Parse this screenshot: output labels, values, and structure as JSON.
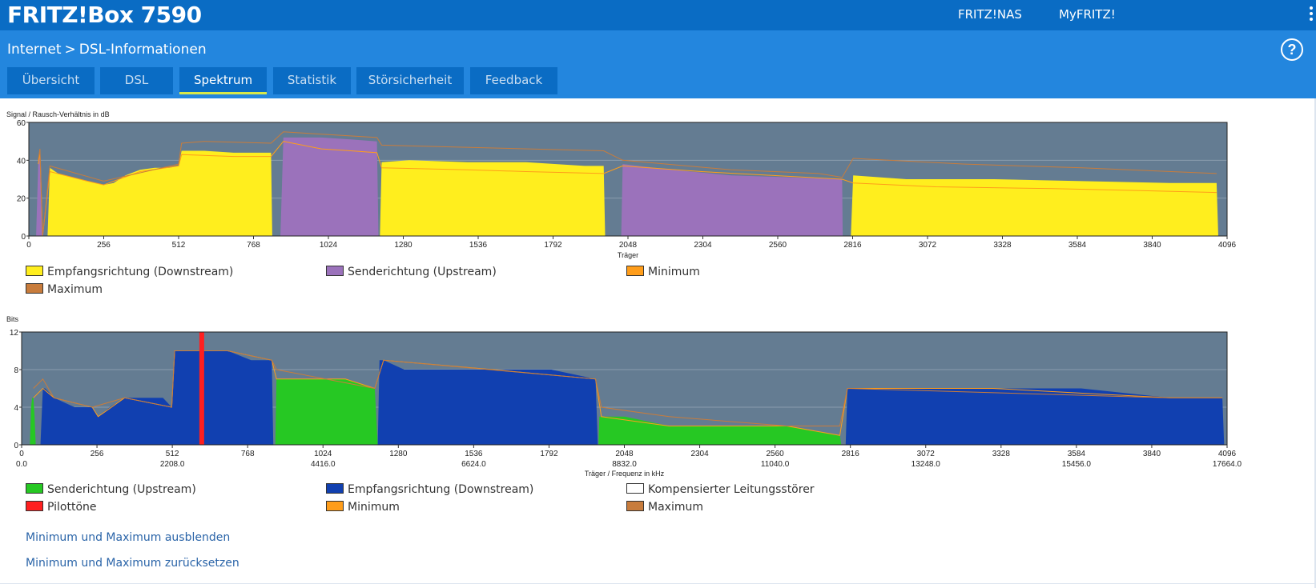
{
  "header": {
    "brand": "FRITZ!Box 7590",
    "links": [
      "FRITZ!NAS",
      "MyFRITZ!"
    ]
  },
  "breadcrumb": {
    "parent": "Internet",
    "separator": ">",
    "current": "DSL-Informationen"
  },
  "help": {
    "label": "?"
  },
  "tabs": [
    {
      "label": "Übersicht"
    },
    {
      "label": "DSL"
    },
    {
      "label": "Spektrum",
      "active": true
    },
    {
      "label": "Statistik"
    },
    {
      "label": "Störsicherheit"
    },
    {
      "label": "Feedback"
    }
  ],
  "colors": {
    "downstream_snr": "#ffee1e",
    "upstream_snr": "#9b72bb",
    "minimum": "#ff9d1a",
    "maximum": "#c87c3c",
    "upstream_bits": "#26c823",
    "downstream_bits": "#1140b0",
    "pilot": "#ff1f1f",
    "plot_bg": "#647c92"
  },
  "chart_data": [
    {
      "type": "area",
      "ylabel": "Signal / Rausch-Verhältnis in dB",
      "xlabel": "Träger",
      "ylim": [
        0,
        60
      ],
      "xlim": [
        0,
        4096
      ],
      "y_ticks": [
        "0",
        "20",
        "40",
        "60"
      ],
      "x_ticks": [
        "0",
        "256",
        "512",
        "768",
        "1024",
        "1280",
        "1536",
        "1792",
        "2048",
        "2304",
        "2560",
        "2816",
        "3072",
        "3328",
        "3584",
        "3840",
        "4096"
      ],
      "legend": [
        {
          "label": "Empfangsrichtung (Downstream)",
          "color": "#ffee1e"
        },
        {
          "label": "Senderichtung (Upstream)",
          "color": "#9b72bb"
        },
        {
          "label": "Minimum",
          "color": "#ff9d1a"
        },
        {
          "label": "Maximum",
          "color": "#c87c3c"
        }
      ],
      "series": [
        {
          "name": "Senderichtung (Upstream)",
          "x": [
            25,
            32,
            38,
            42,
            47,
            860,
            870,
            1000,
            1100,
            1190,
            1195,
            2025,
            2030,
            2200,
            2400,
            2600,
            2780,
            2782
          ],
          "y": [
            0,
            38,
            45,
            36,
            0,
            0,
            52,
            52,
            51,
            50,
            0,
            0,
            38,
            35,
            32,
            31,
            30,
            0
          ]
        },
        {
          "name": "Empfangsrichtung (Downstream)",
          "x": [
            64,
            72,
            100,
            150,
            200,
            256,
            290,
            330,
            380,
            430,
            480,
            510,
            512,
            522,
            600,
            700,
            790,
            828,
            832,
            1200,
            1206,
            1300,
            1500,
            1700,
            1900,
            1965,
            1970,
            2810,
            2818,
            3000,
            3300,
            3600,
            3900,
            4060,
            4066
          ],
          "y": [
            0,
            36,
            33,
            31,
            29,
            27,
            28,
            32,
            35,
            36,
            36,
            37,
            37,
            45,
            45,
            44,
            44,
            44,
            0,
            0,
            39,
            40,
            39,
            39,
            37,
            37,
            0,
            0,
            32,
            30,
            30,
            29,
            28,
            28,
            0
          ]
        },
        {
          "name": "Minimum",
          "x": [
            32,
            38,
            47,
            72,
            200,
            256,
            380,
            512,
            522,
            700,
            828,
            870,
            1000,
            1100,
            1190,
            1206,
            1500,
            1700,
            1965,
            2030,
            2300,
            2780,
            2818,
            3100,
            3500,
            3800,
            4060
          ],
          "y": [
            38,
            44,
            0,
            34,
            29,
            27,
            34,
            37,
            43,
            42,
            42,
            50,
            46,
            45,
            44,
            36,
            35,
            34,
            33,
            37,
            34,
            30,
            28,
            26,
            25,
            24,
            23
          ]
        },
        {
          "name": "Maximum",
          "x": [
            32,
            38,
            47,
            72,
            256,
            512,
            522,
            600,
            828,
            870,
            1190,
            1206,
            1965,
            2030,
            2400,
            2700,
            2780,
            2818,
            3200,
            3600,
            4060
          ],
          "y": [
            40,
            46,
            0,
            37,
            29,
            38,
            49,
            50,
            49,
            55,
            52,
            48,
            45,
            40,
            35,
            33,
            31,
            41,
            38,
            36,
            33
          ]
        }
      ]
    },
    {
      "type": "area",
      "ylabel": "Bits",
      "xlabel": "Träger / Frequenz in kHz",
      "ylim": [
        0,
        12
      ],
      "xlim": [
        0,
        4096
      ],
      "y_ticks": [
        "0",
        "4",
        "8",
        "12"
      ],
      "x_ticks": [
        "0",
        "256",
        "512",
        "768",
        "1024",
        "1280",
        "1536",
        "1792",
        "2048",
        "2304",
        "2560",
        "2816",
        "3072",
        "3328",
        "3584",
        "3840",
        "4096"
      ],
      "freq_ticks": [
        "0.0",
        "2208.0",
        "4416.0",
        "6624.0",
        "8832.0",
        "11040.0",
        "13248.0",
        "15456.0",
        "17664.0"
      ],
      "legend": [
        {
          "label": "Senderichtung (Upstream)",
          "color": "#26c823"
        },
        {
          "label": "Empfangsrichtung (Downstream)",
          "color": "#1140b0"
        },
        {
          "label": "Kompensierter Leitungsstörer",
          "color": "#ffffff"
        },
        {
          "label": "Pilottöne",
          "color": "#ff1f1f"
        },
        {
          "label": "Minimum",
          "color": "#ff9d1a"
        },
        {
          "label": "Maximum",
          "color": "#c87c3c"
        }
      ],
      "pilot_tone": 612,
      "series": [
        {
          "name": "Senderichtung (Upstream)",
          "x": [
            28,
            32,
            36,
            40,
            44,
            48,
            862,
            866,
            1000,
            1100,
            1200,
            1210,
            1960,
            1963,
            1970,
            2050,
            2200,
            2400,
            2600,
            2780,
            2785
          ],
          "y": [
            0,
            4,
            5,
            5,
            3,
            0,
            0,
            7,
            7,
            7,
            6,
            0,
            0,
            3,
            3,
            3,
            2,
            2,
            2,
            1,
            0
          ]
        },
        {
          "name": "Empfangsrichtung (Downstream)",
          "x": [
            64,
            72,
            80,
            110,
            180,
            240,
            260,
            300,
            350,
            450,
            480,
            510,
            520,
            570,
            640,
            700,
            780,
            850,
            855,
            1210,
            1216,
            1230,
            1300,
            1400,
            1600,
            1800,
            1950,
            1958,
            2800,
            2806,
            3000,
            3300,
            3600,
            3900,
            4080,
            4086
          ],
          "y": [
            0,
            6,
            6,
            5,
            4,
            4,
            3,
            4,
            5,
            5,
            5,
            4,
            10,
            10,
            10,
            10,
            9,
            9,
            0,
            0,
            9,
            9,
            8,
            8,
            8,
            8,
            7,
            0,
            0,
            6,
            6,
            6,
            6,
            5,
            5,
            0
          ]
        },
        {
          "name": "Minimum",
          "x": [
            40,
            72,
            110,
            240,
            260,
            350,
            510,
            520,
            700,
            850,
            866,
            1100,
            1200,
            1230,
            1600,
            1950,
            1970,
            2200,
            2600,
            2780,
            2806,
            3300,
            3900,
            4080
          ],
          "y": [
            5,
            6,
            5,
            4,
            3,
            5,
            4,
            10,
            10,
            9,
            7,
            7,
            6,
            9,
            8,
            7,
            3,
            2,
            2,
            1,
            6,
            6,
            5,
            5
          ]
        },
        {
          "name": "Maximum",
          "x": [
            40,
            72,
            110,
            240,
            350,
            510,
            520,
            700,
            850,
            866,
            1200,
            1230,
            1950,
            1970,
            2200,
            2600,
            2780,
            2806,
            3900,
            4080
          ],
          "y": [
            6,
            7,
            5,
            4,
            5,
            4,
            10,
            10,
            9,
            8,
            6,
            9,
            7,
            4,
            3,
            2,
            2,
            6,
            5,
            5
          ]
        }
      ]
    }
  ],
  "actions": [
    "Minimum und Maximum ausblenden",
    "Minimum und Maximum zurücksetzen"
  ]
}
